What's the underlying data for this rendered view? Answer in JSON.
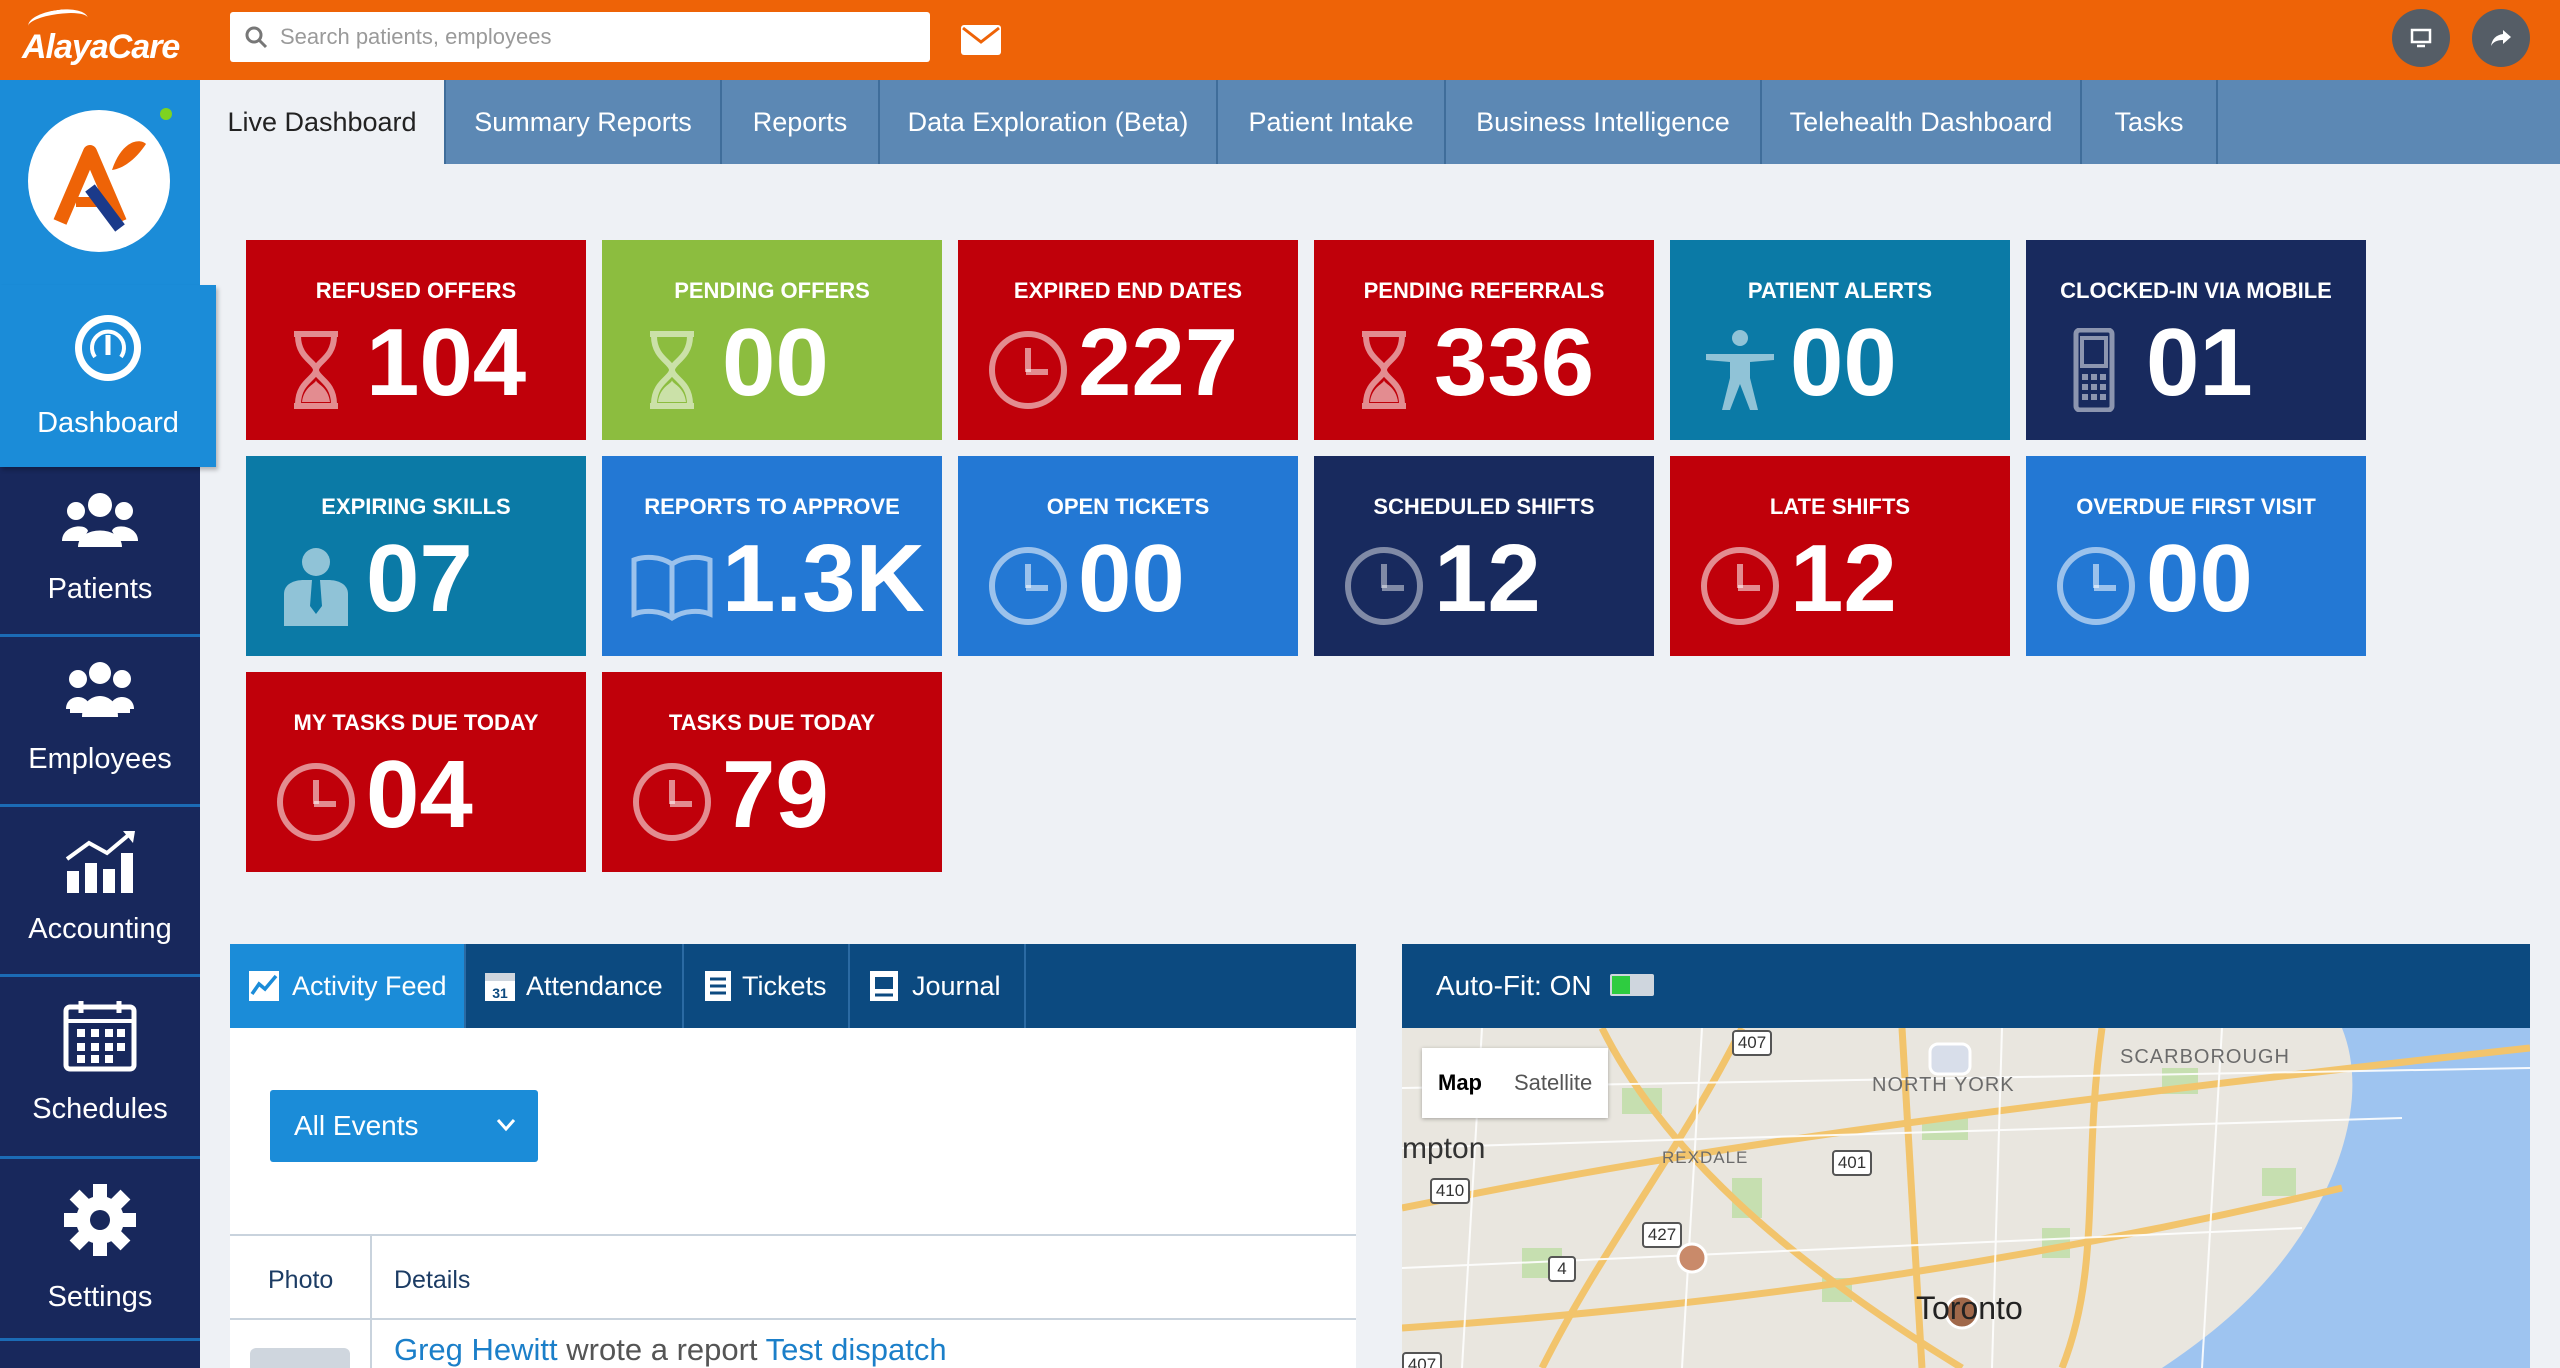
{
  "header": {
    "logo_text": "AlayaCare",
    "search_placeholder": "Search patients, employees"
  },
  "sidebar": {
    "items": [
      {
        "label": "Dashboard",
        "icon": "gauge-icon"
      },
      {
        "label": "Patients",
        "icon": "users-icon"
      },
      {
        "label": "Employees",
        "icon": "team-icon"
      },
      {
        "label": "Accounting",
        "icon": "bar-chart-icon"
      },
      {
        "label": "Schedules",
        "icon": "calendar-icon"
      },
      {
        "label": "Settings",
        "icon": "gear-icon"
      }
    ]
  },
  "tabs": [
    "Live Dashboard",
    "Summary Reports",
    "Reports",
    "Data Exploration (Beta)",
    "Patient Intake",
    "Business Intelligence",
    "Telehealth Dashboard",
    "Tasks"
  ],
  "tiles": [
    {
      "title": "REFUSED OFFERS",
      "value": "104",
      "icon": "hourglass-icon",
      "color": "#c0000a"
    },
    {
      "title": "PENDING OFFERS",
      "value": "00",
      "icon": "hourglass-icon",
      "color": "#8cbd3f"
    },
    {
      "title": "EXPIRED END DATES",
      "value": "227",
      "icon": "clock-icon",
      "color": "#c0000a"
    },
    {
      "title": "PENDING REFERRALS",
      "value": "336",
      "icon": "hourglass-icon",
      "color": "#c0000a"
    },
    {
      "title": "PATIENT ALERTS",
      "value": "00",
      "icon": "person-icon",
      "color": "#0b7aa6"
    },
    {
      "title": "CLOCKED-IN VIA MOBILE",
      "value": "01",
      "icon": "mobile-phone-icon",
      "color": "#182a5e"
    },
    {
      "title": "EXPIRING SKILLS",
      "value": "07",
      "icon": "employee-icon",
      "color": "#0b7aa6"
    },
    {
      "title": "REPORTS TO APPROVE",
      "value": "1.3K",
      "icon": "book-icon",
      "color": "#2378d4"
    },
    {
      "title": "OPEN TICKETS",
      "value": "00",
      "icon": "clock-icon",
      "color": "#2378d4"
    },
    {
      "title": "SCHEDULED SHIFTS",
      "value": "12",
      "icon": "clock-icon",
      "color": "#182a5e"
    },
    {
      "title": "LATE SHIFTS",
      "value": "12",
      "icon": "clock-icon",
      "color": "#c0000a"
    },
    {
      "title": "OVERDUE FIRST VISIT",
      "value": "00",
      "icon": "clock-icon",
      "color": "#2378d4"
    },
    {
      "title": "MY TASKS DUE TODAY",
      "value": "04",
      "icon": "clock-icon",
      "color": "#c0000a"
    },
    {
      "title": "TASKS DUE TODAY",
      "value": "79",
      "icon": "clock-icon",
      "color": "#c0000a"
    }
  ],
  "activity": {
    "tabs": [
      {
        "label": "Activity Feed",
        "icon": "line-chart-icon"
      },
      {
        "label": "Attendance",
        "icon": "calendar-31-icon"
      },
      {
        "label": "Tickets",
        "icon": "ticket-list-icon"
      },
      {
        "label": "Journal",
        "icon": "journal-icon"
      }
    ],
    "filter_value": "All Events",
    "columns": [
      "Photo",
      "Details"
    ],
    "rows": [
      {
        "actor": "Greg Hewitt",
        "action": "wrote a report",
        "target": "Test dispatch"
      }
    ]
  },
  "map": {
    "autofit_label": "Auto-Fit: ON",
    "map_types": [
      "Map",
      "Satellite"
    ],
    "labels": [
      "NORTH YORK",
      "SCARBOROUGH",
      "REXDALE",
      "mpton",
      "Toronto"
    ],
    "shields": [
      "407",
      "401",
      "410",
      "427",
      "4",
      "407"
    ]
  }
}
